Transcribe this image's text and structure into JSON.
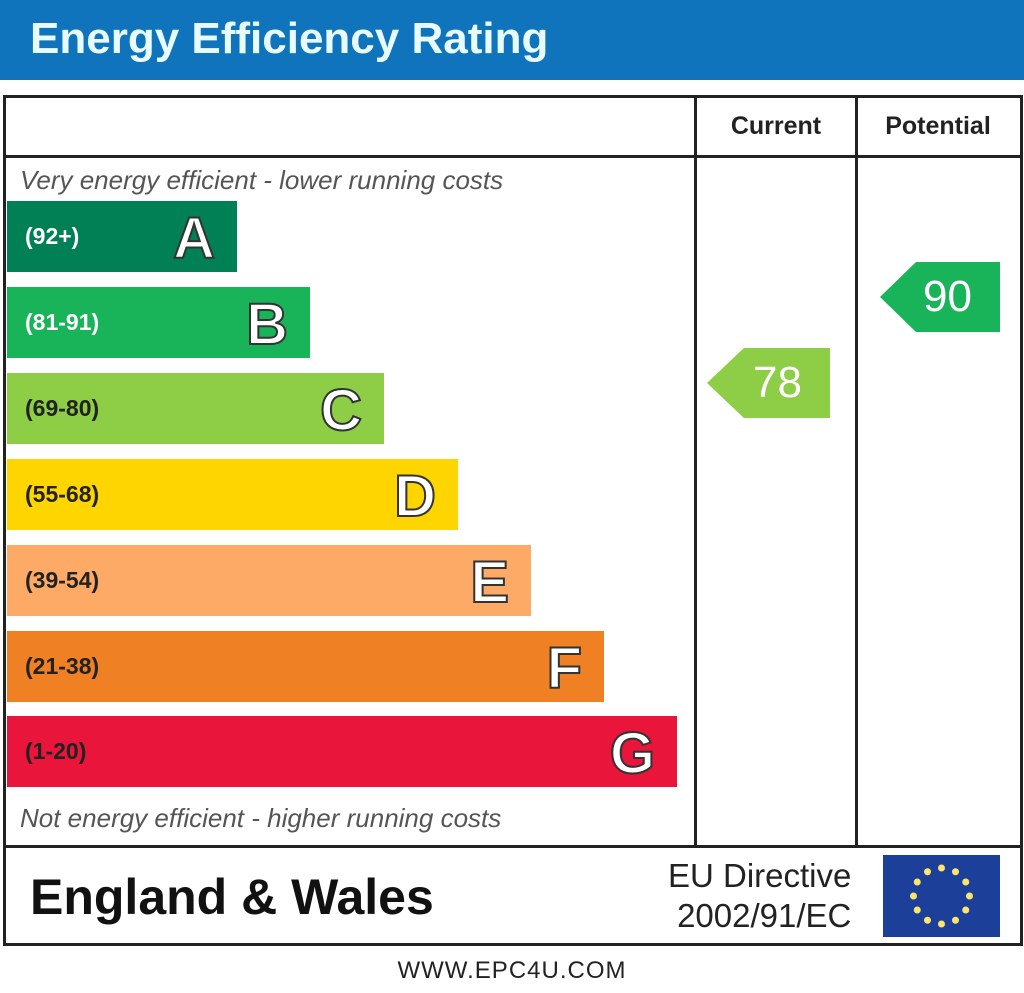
{
  "title": "Energy Efficiency Rating",
  "chart_data": {
    "type": "bar",
    "title": "Energy Efficiency Rating",
    "columns": [
      "Current",
      "Potential"
    ],
    "top_note": "Very energy efficient - lower running costs",
    "bottom_note": "Not energy efficient - higher running costs",
    "bands": [
      {
        "letter": "A",
        "range": "(92+)",
        "min": 92,
        "max": 100,
        "color": "#008054"
      },
      {
        "letter": "B",
        "range": "(81-91)",
        "min": 81,
        "max": 91,
        "color": "#19b459"
      },
      {
        "letter": "C",
        "range": "(69-80)",
        "min": 69,
        "max": 80,
        "color": "#8dce46"
      },
      {
        "letter": "D",
        "range": "(55-68)",
        "min": 55,
        "max": 68,
        "color": "#ffd500"
      },
      {
        "letter": "E",
        "range": "(39-54)",
        "min": 39,
        "max": 54,
        "color": "#fcaa65"
      },
      {
        "letter": "F",
        "range": "(21-38)",
        "min": 21,
        "max": 38,
        "color": "#ef8023"
      },
      {
        "letter": "G",
        "range": "(1-20)",
        "min": 1,
        "max": 20,
        "color": "#e9153b"
      }
    ],
    "current": 78,
    "potential": 90
  },
  "footer": {
    "region": "England & Wales",
    "directive_line1": "EU Directive",
    "directive_line2": "2002/91/EC",
    "website": "WWW.EPC4U.COM"
  }
}
